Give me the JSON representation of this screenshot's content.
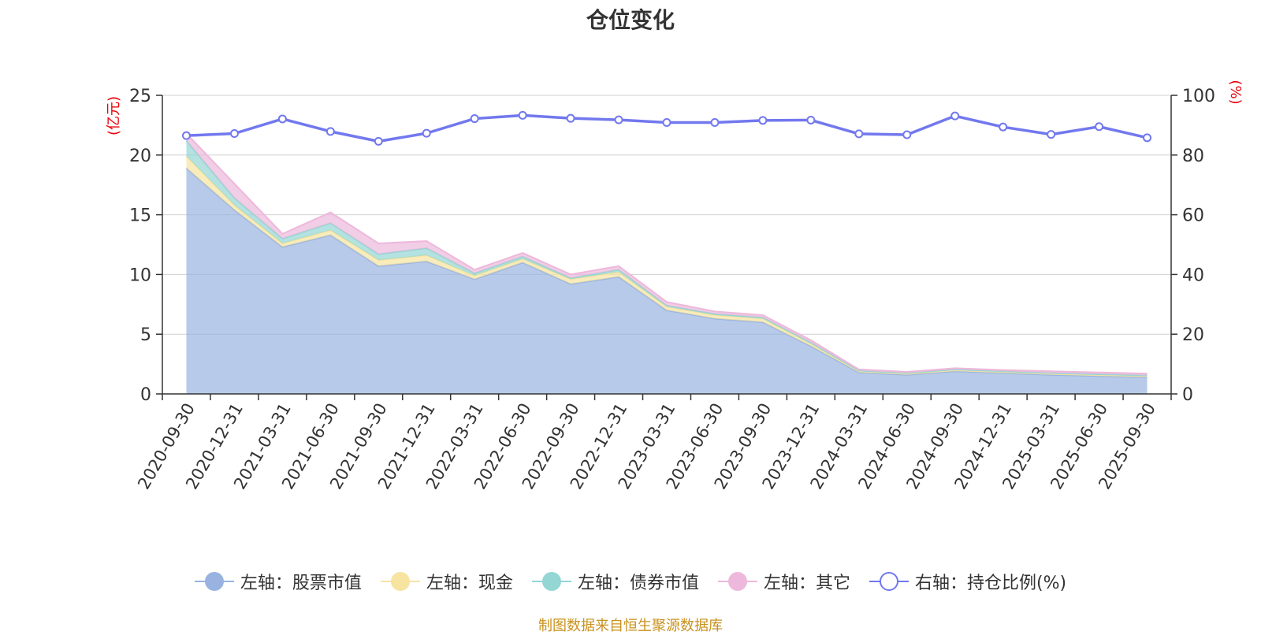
{
  "title": "仓位变化",
  "source": "制图数据来自恒生聚源数据库",
  "chart_data": {
    "type": "area",
    "title": "仓位变化",
    "stacked": true,
    "categories": [
      "2020-09-30",
      "2020-12-31",
      "2021-03-31",
      "2021-06-30",
      "2021-09-30",
      "2021-12-31",
      "2022-03-31",
      "2022-06-30",
      "2022-09-30",
      "2022-12-31",
      "2023-03-31",
      "2023-06-30",
      "2023-09-30",
      "2023-12-31",
      "2024-03-31",
      "2024-06-30",
      "2024-09-30",
      "2024-12-31",
      "2025-03-31",
      "2025-06-30",
      "2025-09-30"
    ],
    "left_axis": {
      "unit_label": "(亿元)",
      "ylim": [
        0,
        25
      ],
      "ticks": [
        "0",
        "5",
        "10",
        "15",
        "20",
        "25"
      ]
    },
    "right_axis": {
      "unit_label": "(%)",
      "ylim": [
        0,
        100
      ],
      "ticks": [
        "0",
        "20",
        "40",
        "60",
        "80",
        "100"
      ]
    },
    "grid": true,
    "legend_position": "bottom",
    "series": [
      {
        "name": "左轴：股票市值",
        "axis": "left",
        "color": "#98b3e0",
        "values": [
          18.9,
          15.4,
          12.3,
          13.3,
          10.7,
          11.1,
          9.6,
          11.0,
          9.2,
          9.8,
          7.0,
          6.3,
          6.0,
          4.0,
          1.8,
          1.6,
          1.9,
          1.75,
          1.6,
          1.5,
          1.4
        ]
      },
      {
        "name": "左轴：现金",
        "axis": "left",
        "color": "#f7e4a0",
        "values": [
          1.0,
          0.4,
          0.3,
          0.4,
          0.5,
          0.5,
          0.3,
          0.3,
          0.4,
          0.4,
          0.3,
          0.3,
          0.3,
          0.2,
          0.1,
          0.1,
          0.1,
          0.1,
          0.1,
          0.1,
          0.1
        ]
      },
      {
        "name": "左轴：债券市值",
        "axis": "left",
        "color": "#93d6d4",
        "values": [
          1.3,
          0.6,
          0.4,
          0.6,
          0.5,
          0.6,
          0.2,
          0.2,
          0.1,
          0.2,
          0.1,
          0.1,
          0.1,
          0.1,
          0.05,
          0.05,
          0.05,
          0.05,
          0.05,
          0.05,
          0.05
        ]
      },
      {
        "name": "左轴：其它",
        "axis": "left",
        "color": "#edb8db",
        "values": [
          0.6,
          1.2,
          0.4,
          0.9,
          0.9,
          0.6,
          0.3,
          0.3,
          0.3,
          0.3,
          0.3,
          0.2,
          0.2,
          0.2,
          0.1,
          0.1,
          0.1,
          0.1,
          0.15,
          0.15,
          0.15
        ]
      },
      {
        "name": "右轴：持仓比例(%)",
        "axis": "right",
        "type": "line",
        "color": "#7278ee",
        "values": [
          86.5,
          87.2,
          92.1,
          87.9,
          84.6,
          87.3,
          92.2,
          93.3,
          92.3,
          91.8,
          90.9,
          90.9,
          91.6,
          91.7,
          87.1,
          86.8,
          93.1,
          89.4,
          86.9,
          89.5,
          85.8
        ]
      }
    ]
  }
}
